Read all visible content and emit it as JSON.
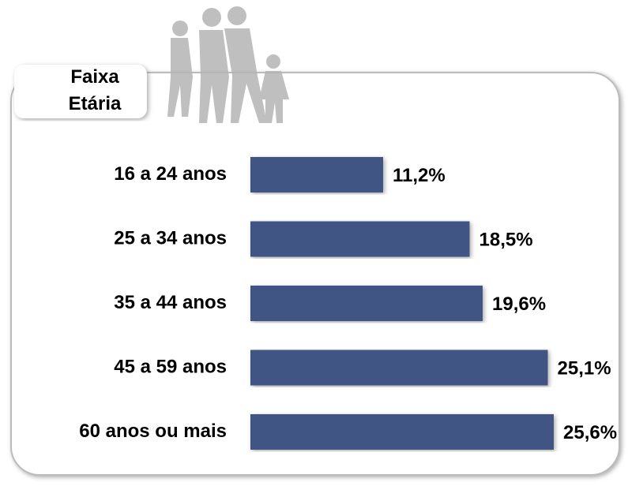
{
  "chart_data": {
    "type": "bar",
    "orientation": "horizontal",
    "title": "Faixa Etária",
    "categories": [
      "16 a 24 anos",
      "25 a 34 anos",
      "35 a 44 anos",
      "45 a 59 anos",
      "60 anos ou mais"
    ],
    "values": [
      11.2,
      18.5,
      19.6,
      25.1,
      25.6
    ],
    "value_labels": [
      "11,2%",
      "18,5%",
      "19,6%",
      "25,1%",
      "25,6%"
    ],
    "color": "#3f5584"
  }
}
